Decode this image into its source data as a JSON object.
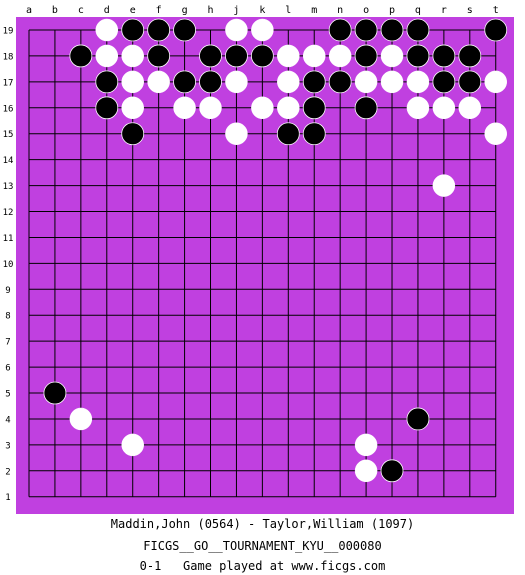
{
  "board": {
    "size": 19,
    "background_color": "#c040e0",
    "line_color": "#000000",
    "black_stone_color": "#000000",
    "white_stone_color": "#ffffff",
    "columns": [
      "a",
      "b",
      "c",
      "d",
      "e",
      "f",
      "g",
      "h",
      "j",
      "k",
      "l",
      "m",
      "n",
      "o",
      "p",
      "q",
      "r",
      "s",
      "t"
    ],
    "rows": [
      "19",
      "18",
      "17",
      "16",
      "15",
      "14",
      "13",
      "12",
      "11",
      "10",
      "9",
      "8",
      "7",
      "6",
      "5",
      "4",
      "3",
      "2",
      "1"
    ],
    "black_stones": [
      "e19",
      "f19",
      "g19",
      "n19",
      "o19",
      "p19",
      "q19",
      "t19",
      "c18",
      "f18",
      "h18",
      "j18",
      "k18",
      "o18",
      "q18",
      "r18",
      "s18",
      "d17",
      "g17",
      "h17",
      "m17",
      "n17",
      "r17",
      "s17",
      "d16",
      "m16",
      "o16",
      "e15",
      "l15",
      "m15",
      "b5",
      "q4",
      "p2"
    ],
    "white_stones": [
      "d19",
      "j19",
      "k19",
      "d18",
      "e18",
      "l18",
      "m18",
      "n18",
      "p18",
      "e17",
      "f17",
      "j17",
      "l17",
      "o17",
      "p17",
      "q17",
      "t17",
      "e16",
      "g16",
      "h16",
      "k16",
      "l16",
      "q16",
      "r16",
      "s16",
      "j15",
      "t15",
      "r13",
      "c4",
      "e3",
      "o3",
      "o2"
    ]
  },
  "footer": {
    "players": "Maddin,John (0564) - Taylor,William (1097)",
    "tournament": "FICGS__GO__TOURNAMENT_KYU__000080",
    "result_line": "0-1   Game played at www.ficgs.com"
  }
}
